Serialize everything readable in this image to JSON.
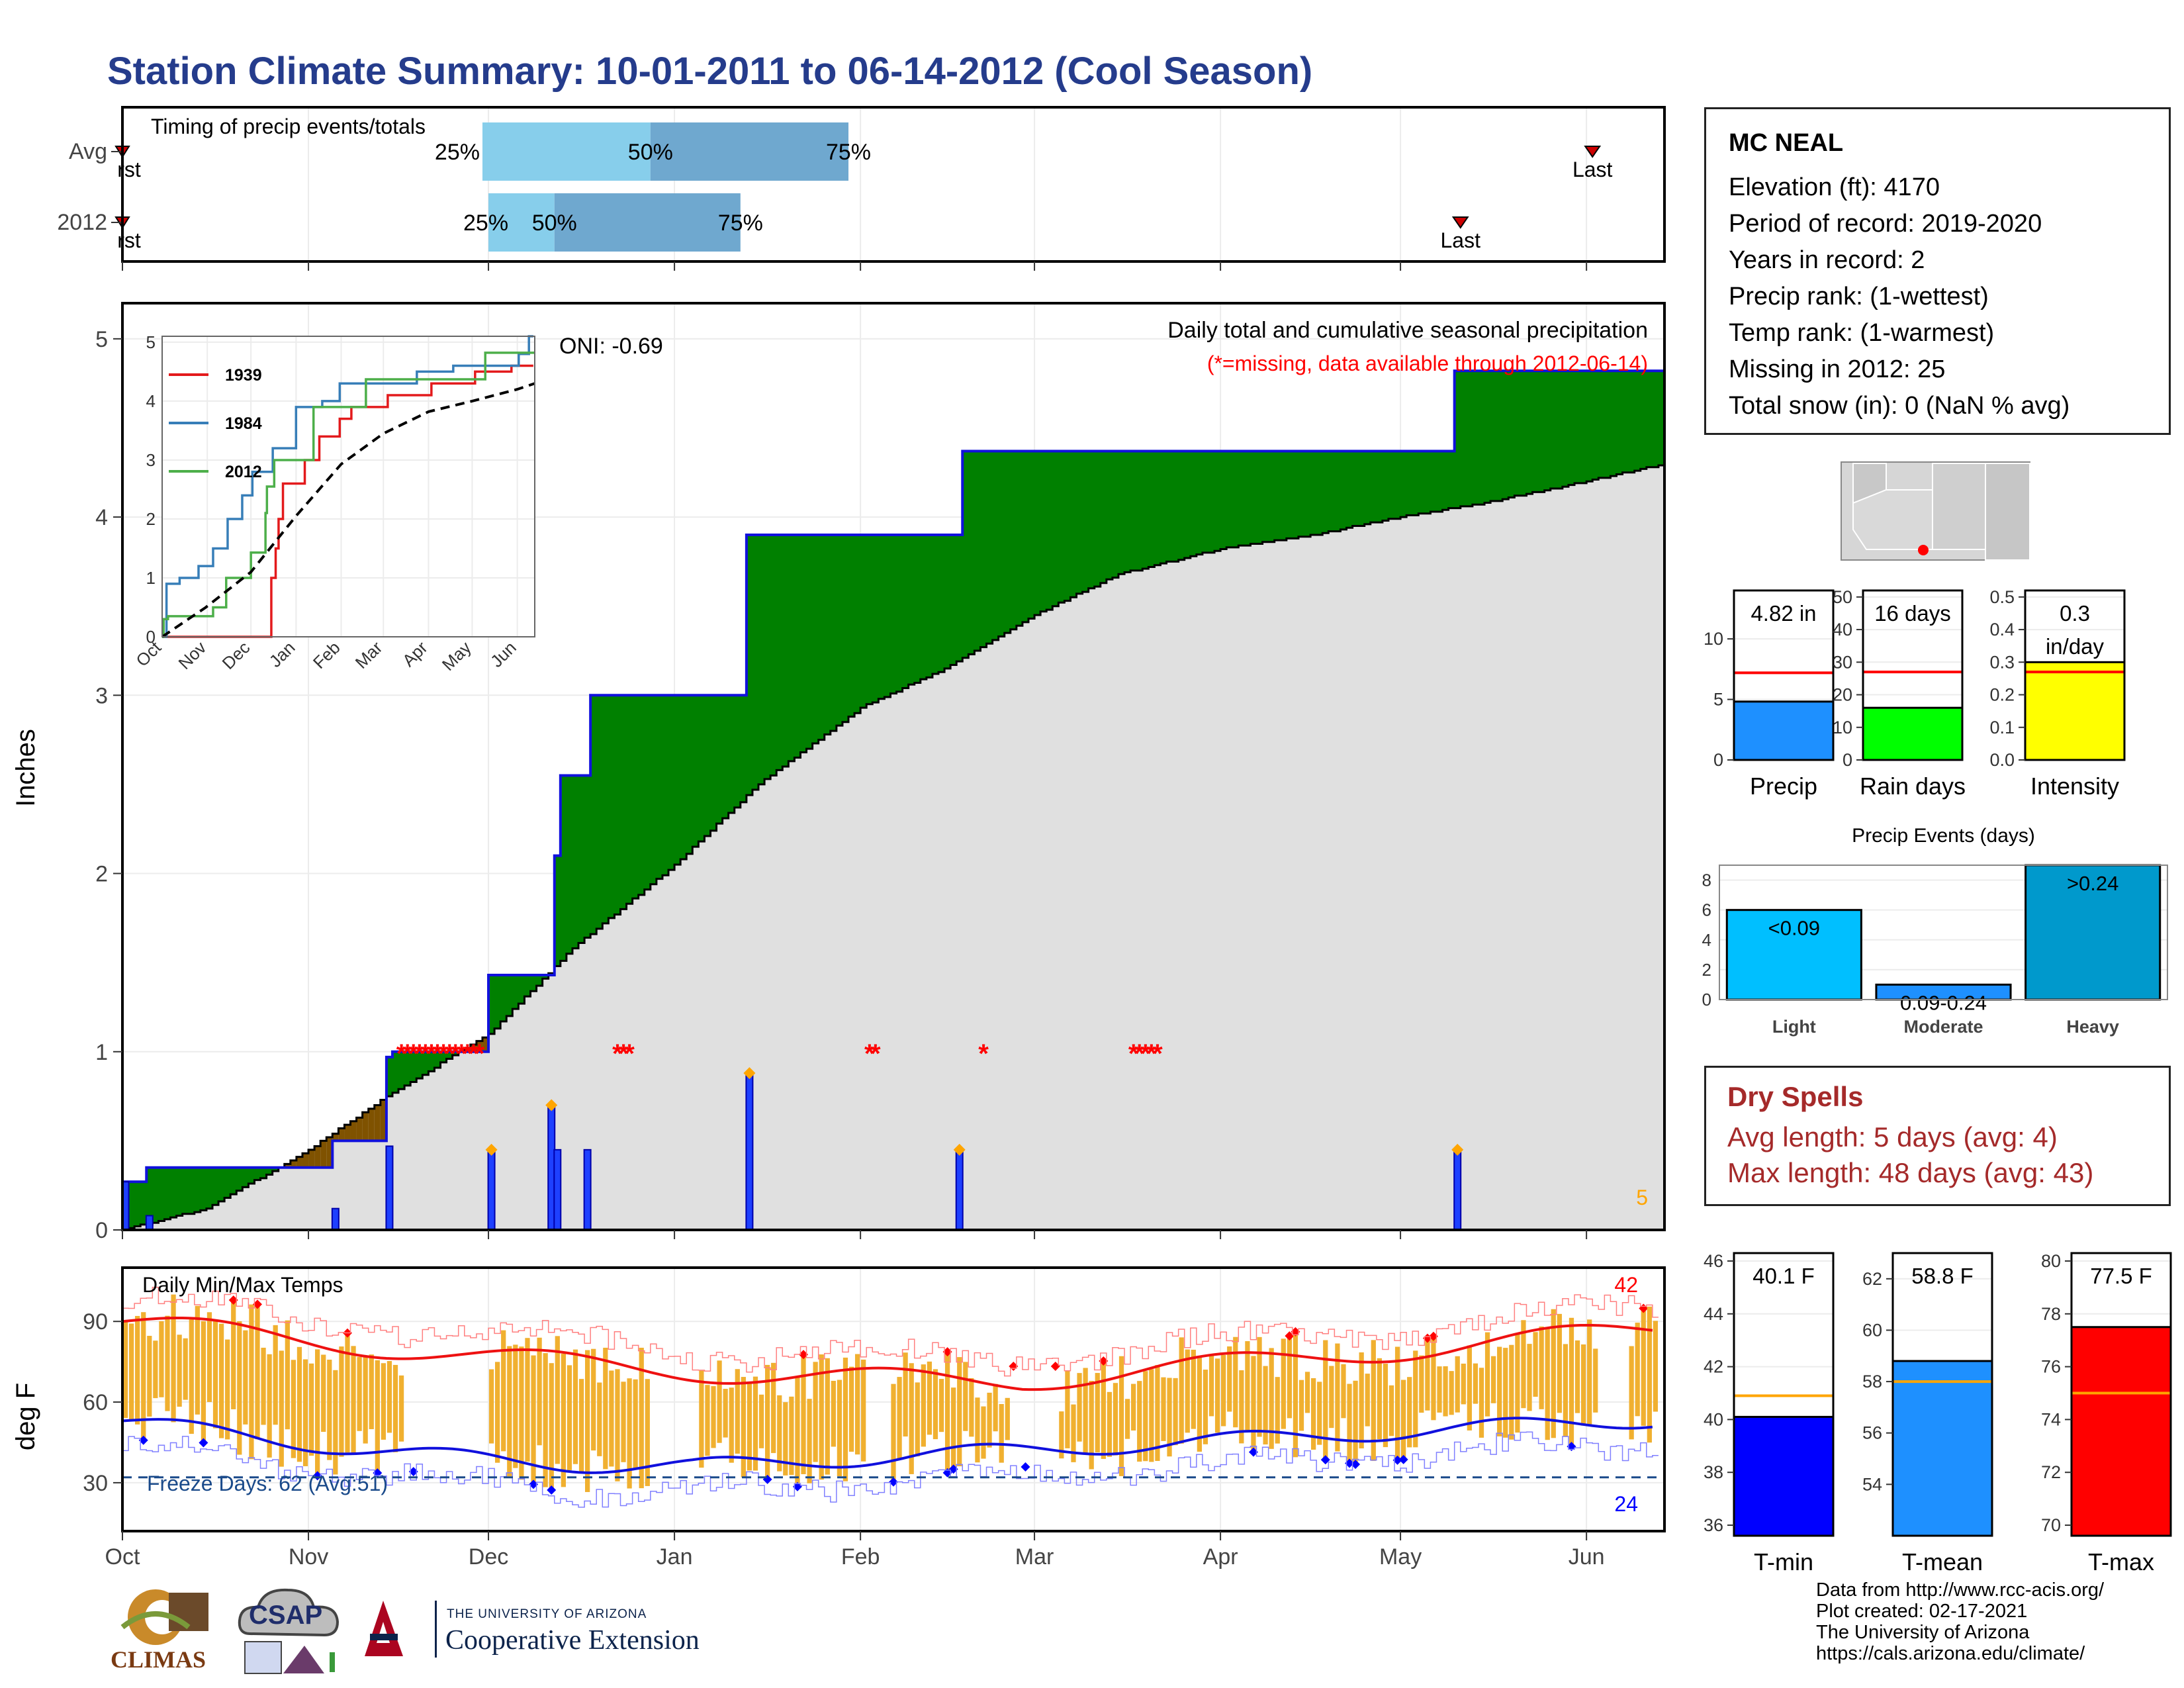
{
  "title": "Station Climate Summary: 10-01-2011 to 06-14-2012 (Cool Season)",
  "station": {
    "name": "MC NEAL",
    "lines": [
      "Elevation (ft): 4170",
      "Period of record: 2019-2020",
      "Years in record: 2",
      "Precip rank:  (1-wettest)",
      "Temp rank:  (1-warmest)",
      "Missing in 2012: 25",
      "Total snow (in): 0 (NaN % avg)"
    ]
  },
  "dry_spells": {
    "title": "Dry Spells",
    "avg_line": "Avg length: 5 days (avg: 4)",
    "max_line": "Max length: 48 days (avg: 43)"
  },
  "credits": [
    "Data from http://www.rcc-acis.org/",
    "Plot created: 02-17-2021",
    "The University of Arizona",
    "https://cals.arizona.edu/climate/"
  ],
  "logos": {
    "climas": "CLIMAS",
    "csap": "CSAP",
    "ua_top": "THE UNIVERSITY OF ARIZONA",
    "ua_bottom": "Cooperative Extension"
  },
  "colors": {
    "accent_title": "#253c8c",
    "green": "#008000",
    "brown": "#7f5200",
    "grey": "#e0e0e0",
    "blue": "#0000ff",
    "orange": "#ffa500",
    "red": "#ff0000",
    "temp_bar": "#f0b030",
    "q_light": "#87ceeb",
    "q_dark": "#6fa8cf",
    "dry": "#a52a2a"
  },
  "chart_data": [
    {
      "id": "timing",
      "type": "bar",
      "title": "Timing of precip events/totals",
      "rows": [
        "Avg",
        "2012"
      ],
      "x_axis": "date (Oct 1 - Jun 14)",
      "avg": {
        "first": "2011-10-01",
        "q25": "2011-11-30",
        "q50": "2011-12-28",
        "q75": "2012-01-30",
        "last": "2012-06-02",
        "labels": [
          "rst",
          "25%",
          "50%",
          "75%",
          "Last"
        ]
      },
      "y2012": {
        "first": "2011-10-01",
        "q25": "2011-12-01",
        "q50": "2011-12-12",
        "q75": "2012-01-12",
        "last": "2012-05-11",
        "labels": [
          "rst",
          "25%",
          "50%",
          "75%",
          "Last"
        ]
      }
    },
    {
      "id": "precip",
      "type": "area",
      "title": "Daily total and cumulative seasonal precipitation",
      "subtitle": "(*=missing, data available through 2012-06-14)",
      "oni": "ONI: -0.69",
      "ylabel": "Inches",
      "ylim": [
        0,
        5.2
      ],
      "yticks": [
        0,
        1,
        2,
        3,
        4,
        5
      ],
      "corner_label": "5",
      "cumulative_2012": [
        [
          "2011-10-01",
          0.27
        ],
        [
          "2011-10-05",
          0.35
        ],
        [
          "2011-11-05",
          0.5
        ],
        [
          "2011-11-14",
          0.97
        ],
        [
          "2011-11-15",
          1.0
        ],
        [
          "2011-12-01",
          1.43
        ],
        [
          "2011-12-12",
          2.1
        ],
        [
          "2011-12-13",
          2.55
        ],
        [
          "2011-12-18",
          3.0
        ],
        [
          "2012-01-13",
          3.9
        ],
        [
          "2012-02-18",
          4.37
        ],
        [
          "2012-05-10",
          4.82
        ],
        [
          "2012-06-14",
          4.82
        ]
      ],
      "cumulative_avg": [
        [
          "2011-10-01",
          0.0
        ],
        [
          "2011-10-15",
          0.12
        ],
        [
          "2011-11-01",
          0.45
        ],
        [
          "2011-11-14",
          0.75
        ],
        [
          "2011-12-01",
          1.1
        ],
        [
          "2011-12-15",
          1.58
        ],
        [
          "2012-01-01",
          2.05
        ],
        [
          "2012-01-15",
          2.5
        ],
        [
          "2012-02-01",
          2.93
        ],
        [
          "2012-02-15",
          3.15
        ],
        [
          "2012-03-01",
          3.45
        ],
        [
          "2012-03-15",
          3.68
        ],
        [
          "2012-04-01",
          3.82
        ],
        [
          "2012-04-15",
          3.89
        ],
        [
          "2012-05-01",
          4.0
        ],
        [
          "2012-05-15",
          4.08
        ],
        [
          "2012-06-01",
          4.2
        ],
        [
          "2012-06-14",
          4.3
        ]
      ],
      "daily_2012": [
        [
          "2011-10-01",
          0.27
        ],
        [
          "2011-10-05",
          0.08
        ],
        [
          "2011-11-05",
          0.12
        ],
        [
          "2011-11-14",
          0.47
        ],
        [
          "2011-12-01",
          0.45
        ],
        [
          "2011-12-11",
          0.7
        ],
        [
          "2011-12-12",
          0.45
        ],
        [
          "2011-12-17",
          0.45
        ],
        [
          "2012-01-13",
          0.88
        ],
        [
          "2012-02-17",
          0.45
        ],
        [
          "2012-05-10",
          0.45
        ]
      ],
      "daily_markers": [
        "2011-12-01",
        "2011-12-11",
        "2012-01-13",
        "2012-02-17",
        "2012-05-10"
      ],
      "missing_days": [
        "2011-11-16",
        "2011-11-17",
        "2011-11-18",
        "2011-11-19",
        "2011-11-20",
        "2011-11-21",
        "2011-11-22",
        "2011-11-23",
        "2011-11-24",
        "2011-11-25",
        "2011-11-26",
        "2011-11-27",
        "2011-11-28",
        "2011-11-29",
        "2011-12-22",
        "2011-12-23",
        "2011-12-24",
        "2012-02-02",
        "2012-02-03",
        "2012-02-21",
        "2012-03-17",
        "2012-03-18",
        "2012-03-19",
        "2012-03-20",
        "2012-03-21"
      ]
    },
    {
      "id": "inset",
      "type": "line",
      "ylim": [
        0,
        5.1
      ],
      "yticks": [
        0,
        1,
        2,
        3,
        4,
        5
      ],
      "x_labels": [
        "Oct",
        "Nov",
        "Dec",
        "Jan",
        "Feb",
        "Mar",
        "Apr",
        "May",
        "Jun"
      ],
      "series": [
        {
          "name": "1939",
          "color": "#e31a1c",
          "points": [
            [
              0,
              0
            ],
            [
              70,
              0
            ],
            [
              75,
              1.0
            ],
            [
              78,
              1.5
            ],
            [
              80,
              2.0
            ],
            [
              83,
              2.6
            ],
            [
              98,
              3.0
            ],
            [
              108,
              3.4
            ],
            [
              122,
              3.7
            ],
            [
              130,
              3.9
            ],
            [
              155,
              4.1
            ],
            [
              185,
              4.3
            ],
            [
              215,
              4.5
            ],
            [
              240,
              4.6
            ],
            [
              255,
              4.6
            ]
          ]
        },
        {
          "name": "1984",
          "color": "#377eb8",
          "points": [
            [
              0,
              0
            ],
            [
              3,
              0.9
            ],
            [
              12,
              1.0
            ],
            [
              25,
              1.2
            ],
            [
              35,
              1.5
            ],
            [
              45,
              2.0
            ],
            [
              55,
              2.4
            ],
            [
              62,
              2.8
            ],
            [
              76,
              3.2
            ],
            [
              92,
              3.9
            ],
            [
              110,
              4.0
            ],
            [
              122,
              4.3
            ],
            [
              160,
              4.3
            ],
            [
              175,
              4.5
            ],
            [
              200,
              4.6
            ],
            [
              225,
              4.6
            ],
            [
              245,
              4.8
            ],
            [
              252,
              5.1
            ],
            [
              255,
              5.1
            ]
          ]
        },
        {
          "name": "2012",
          "color": "#4daf4a",
          "points": [
            [
              0,
              0
            ],
            [
              1,
              0.3
            ],
            [
              4,
              0.35
            ],
            [
              35,
              0.5
            ],
            [
              44,
              1.0
            ],
            [
              61,
              1.43
            ],
            [
              71,
              2.1
            ],
            [
              72,
              2.55
            ],
            [
              77,
              3.0
            ],
            [
              104,
              3.9
            ],
            [
              140,
              4.37
            ],
            [
              222,
              4.82
            ],
            [
              256,
              4.82
            ]
          ]
        },
        {
          "name": "avg",
          "color": "#000000",
          "dashed": true,
          "points": [
            [
              0,
              0
            ],
            [
              30,
              0.5
            ],
            [
              61,
              1.1
            ],
            [
              92,
              2.05
            ],
            [
              123,
              2.93
            ],
            [
              152,
              3.45
            ],
            [
              183,
              3.82
            ],
            [
              213,
              4.0
            ],
            [
              244,
              4.2
            ],
            [
              256,
              4.3
            ]
          ]
        }
      ]
    },
    {
      "id": "temps",
      "type": "bar",
      "title": "Daily Min/Max Temps",
      "ylabel": "deg F",
      "ylim": [
        12,
        110
      ],
      "yticks": [
        30,
        60,
        90
      ],
      "freeze_label": "Freeze Days: 62 (Avg:51)",
      "freeze_line": 32,
      "max_count_label": "42",
      "min_count_label": "24",
      "x_labels": [
        "Oct",
        "Nov",
        "Dec",
        "Jan",
        "Feb",
        "Mar",
        "Apr",
        "May",
        "Jun"
      ]
    },
    {
      "id": "precip_total",
      "type": "bar",
      "label": "Precip",
      "value": 4.82,
      "value_label": "4.82 in",
      "ylim": [
        0,
        14
      ],
      "yticks": [
        0,
        5,
        10
      ],
      "avg": 7.2,
      "color": "#1e90ff"
    },
    {
      "id": "rain_days",
      "type": "bar",
      "label": "Rain days",
      "value": 16,
      "value_label": "16 days",
      "ylim": [
        0,
        52
      ],
      "yticks": [
        0,
        10,
        20,
        30,
        40,
        50
      ],
      "avg": 27,
      "color": "#00ff00"
    },
    {
      "id": "intensity",
      "type": "bar",
      "label": "Intensity",
      "value": 0.3,
      "value_label": [
        "0.3",
        "in/day"
      ],
      "ylim": [
        0,
        0.52
      ],
      "yticks": [
        0.0,
        0.1,
        0.2,
        0.3,
        0.4,
        0.5
      ],
      "avg": 0.27,
      "color": "#ffff00"
    },
    {
      "id": "events",
      "type": "bar",
      "title": "Precip Events (days)",
      "categories": [
        "Light",
        "Moderate",
        "Heavy"
      ],
      "values": [
        6,
        1,
        9
      ],
      "bar_labels": [
        "<0.09",
        "0.09-0.24",
        ">0.24"
      ],
      "ylim": [
        0,
        9
      ],
      "yticks": [
        0,
        2,
        4,
        6,
        8
      ],
      "colors": [
        "#00bfff",
        "#1e90ff",
        "#0099cc"
      ]
    },
    {
      "id": "tmin",
      "type": "bar",
      "label": "T-min",
      "value": 40.1,
      "value_label": "40.1 F",
      "ylim": [
        35.6,
        46.3
      ],
      "yticks": [
        36,
        38,
        40,
        42,
        44,
        46
      ],
      "avg": 40.9,
      "color": "#0000ff"
    },
    {
      "id": "tmean",
      "type": "bar",
      "label": "T-mean",
      "value": 58.8,
      "value_label": "58.8 F",
      "ylim": [
        52.0,
        63.0
      ],
      "yticks": [
        54,
        56,
        58,
        60,
        62
      ],
      "avg": 58.0,
      "color": "#1e90ff"
    },
    {
      "id": "tmax",
      "type": "bar",
      "label": "T-max",
      "value": 77.5,
      "value_label": "77.5 F",
      "ylim": [
        69.6,
        80.3
      ],
      "yticks": [
        70,
        72,
        74,
        76,
        78,
        80
      ],
      "avg": 75.0,
      "color": "#ff0000"
    }
  ]
}
